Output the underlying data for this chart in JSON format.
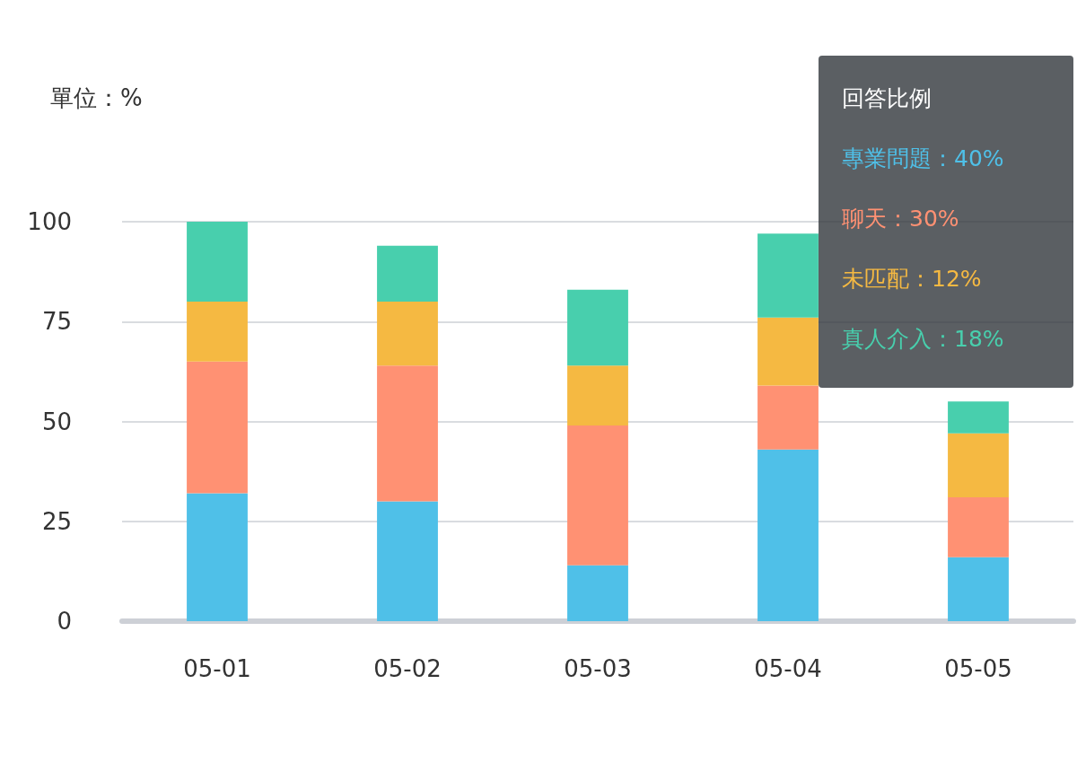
{
  "chart_data": {
    "type": "bar",
    "stacked": true,
    "ylabel": "單位：%",
    "categories": [
      "05-01",
      "05-02",
      "05-03",
      "05-04",
      "05-05"
    ],
    "series": [
      {
        "color": "#4fc0e8",
        "values": [
          32,
          30,
          14,
          43,
          16
        ]
      },
      {
        "color": "#ff9173",
        "values": [
          33,
          34,
          35,
          16,
          15
        ]
      },
      {
        "color": "#f5b942",
        "values": [
          15,
          16,
          15,
          17,
          16
        ]
      },
      {
        "color": "#48cfad",
        "values": [
          20,
          14,
          19,
          21,
          8
        ]
      }
    ],
    "ylim": [
      0,
      100
    ],
    "yticks": [
      0,
      25,
      50,
      75,
      100
    ],
    "grid": "y",
    "annotations": [
      "回答比例",
      "專業問題：40%",
      "聊天：30%",
      "未匹配：12%",
      "真人介入：18%"
    ]
  }
}
